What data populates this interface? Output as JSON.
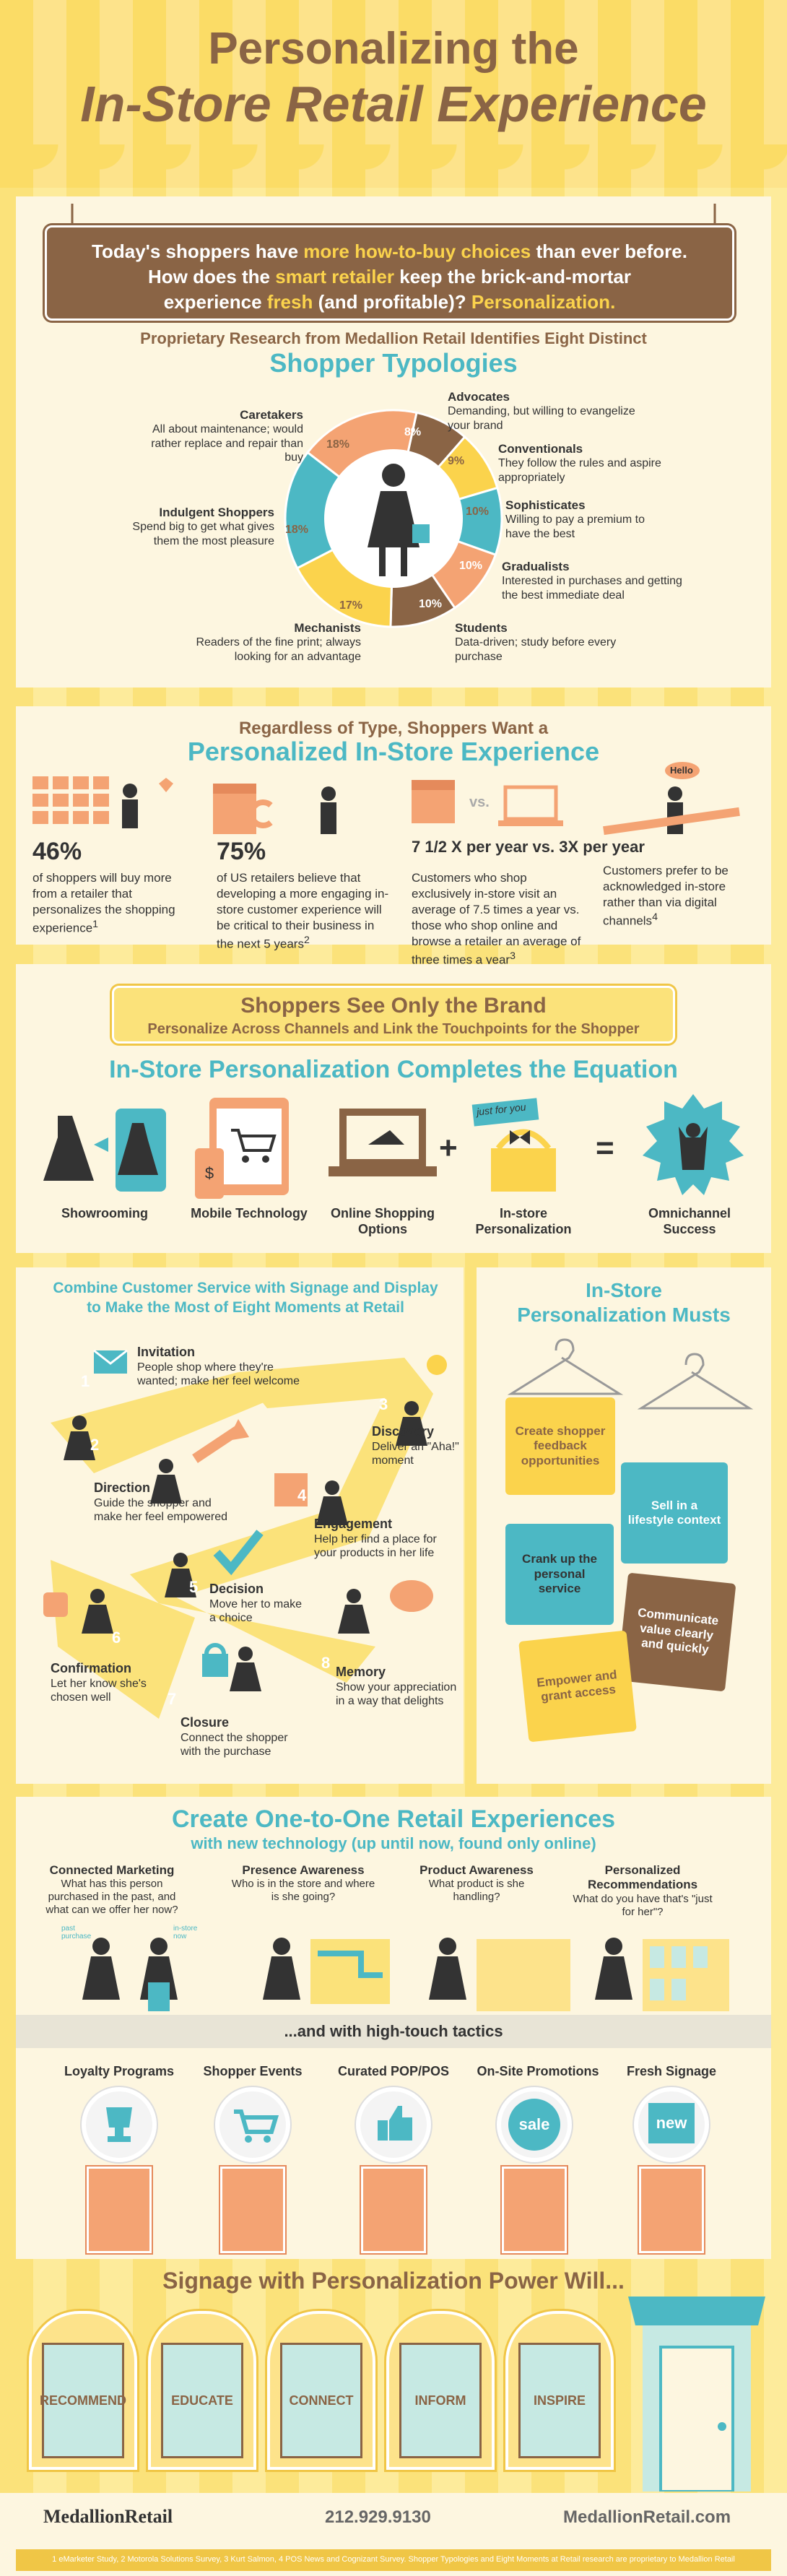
{
  "title": {
    "line1": "Personalizing the",
    "line2": "In-Store Retail Experience"
  },
  "intro": {
    "l1a": "Today's shoppers have ",
    "l1b": "more how-to-buy choices",
    "l1c": " than ever before.",
    "l2a": "How does the ",
    "l2b": "smart retailer",
    "l2c": " keep the brick-and-mortar",
    "l3a": "experience ",
    "l3b": "fresh",
    "l3c": " (and profitable)? ",
    "l3d": "Personalization."
  },
  "typologies": {
    "kicker": "Proprietary Research from Medallion Retail Identifies Eight Distinct",
    "title": "Shopper Typologies",
    "segments": [
      {
        "name": "Caretakers",
        "desc": "All about maintenance; would rather replace and repair than buy",
        "pct": "18%"
      },
      {
        "name": "Advocates",
        "desc": "Demanding, but willing to evangelize your brand",
        "pct": "8%"
      },
      {
        "name": "Conventionals",
        "desc": "They follow the rules and aspire appropriately",
        "pct": "9%"
      },
      {
        "name": "Sophisticates",
        "desc": "Willing to pay a premium to have the best",
        "pct": "10%"
      },
      {
        "name": "Gradualists",
        "desc": "Interested in purchases and getting the best immediate deal",
        "pct": "10%"
      },
      {
        "name": "Students",
        "desc": "Data-driven; study before every purchase",
        "pct": "10%"
      },
      {
        "name": "Mechanists",
        "desc": "Readers of the fine print; always looking for an advantage",
        "pct": "17%"
      },
      {
        "name": "Indulgent Shoppers",
        "desc": "Spend big to get what gives them the most pleasure",
        "pct": "18%"
      }
    ],
    "colors": [
      "#f4a373",
      "#8a6445",
      "#fbd34c",
      "#4cb8c4",
      "#f4a373",
      "#8a6445",
      "#fbd34c",
      "#4cb8c4"
    ]
  },
  "personalized": {
    "kicker": "Regardless of Type, Shoppers Want a",
    "title": "Personalized In-Store Experience",
    "stats": [
      {
        "num": "46%",
        "text": "of shoppers will buy more from a retailer that personalizes the shopping experience",
        "note": "1"
      },
      {
        "num": "75%",
        "text": "of US retailers believe that developing a more engaging in-store customer experience will be critical to their business in the next 5 years",
        "note": "2"
      },
      {
        "num": "7 1/2 X per year vs. 3X per year",
        "text": "Customers who shop exclusively in-store visit an average of 7.5 times a year vs. those who shop online and browse a retailer an average of three times a year",
        "note": "3"
      },
      {
        "num": "",
        "text": "Customers prefer to be acknowledged in-store rather than via digital channels",
        "note": "4"
      }
    ],
    "hello": "Hello",
    "vs": "vs."
  },
  "brand": {
    "title": "Shoppers See Only the Brand",
    "subtitle": "Personalize Across Channels and Link the Touchpoints for the Shopper"
  },
  "equation": {
    "title": "In-Store Personalization Completes the Equation",
    "items": [
      "Showrooming",
      "Mobile Technology",
      "Online Shopping Options",
      "In-store Personalization",
      "Omnichannel Success"
    ],
    "plus": "+",
    "equals": "=",
    "tag": "just for you"
  },
  "moments": {
    "title1": "Combine Customer Service with Signage and Display",
    "title2": "to Make the Most of Eight Moments at Retail",
    "items": [
      {
        "n": "1",
        "name": "Invitation",
        "desc": "People shop where they're wanted; make her feel welcome"
      },
      {
        "n": "2",
        "name": "Direction",
        "desc": "Guide the shopper and make her feel empowered"
      },
      {
        "n": "3",
        "name": "Discovery",
        "desc": "Deliver an \"Aha!\" moment"
      },
      {
        "n": "4",
        "name": "Engagement",
        "desc": "Help her find a place for your products in her life"
      },
      {
        "n": "5",
        "name": "Decision",
        "desc": "Move her to make a choice"
      },
      {
        "n": "6",
        "name": "Confirmation",
        "desc": "Let her know she's chosen well"
      },
      {
        "n": "7",
        "name": "Closure",
        "desc": "Connect the shopper with the purchase"
      },
      {
        "n": "8",
        "name": "Memory",
        "desc": "Show your appreciation in a way that delights"
      }
    ]
  },
  "musts": {
    "title1": "In-Store",
    "title2": "Personalization Musts",
    "tags": [
      "Create shopper feedback opportunities",
      "Sell in a lifestyle context",
      "Crank up the personal service",
      "Communicate value clearly and quickly",
      "Empower and grant access"
    ]
  },
  "oneone": {
    "title": "Create One-to-One Retail Experiences",
    "subtitle": "with new technology (up until now, found only online)",
    "items": [
      {
        "name": "Connected Marketing",
        "desc": "What has this person purchased in the past, and what can we offer her now?"
      },
      {
        "name": "Presence Awareness",
        "desc": "Who is in the store and where is she going?"
      },
      {
        "name": "Product Awareness",
        "desc": "What product is she handling?"
      },
      {
        "name": "Personalized Recommendations",
        "desc": "What do you have that's \"just for her\"?"
      }
    ],
    "past": "past purchase",
    "now": "in-store now",
    "hightouch": "...and with high-touch tactics"
  },
  "tactics": {
    "items": [
      "Loyalty Programs",
      "Shopper Events",
      "Curated POP/POS",
      "On-Site Promotions",
      "Fresh Signage"
    ],
    "sale": "sale",
    "new": "new"
  },
  "signage": {
    "title": "Signage with Personalization Power Will...",
    "words": [
      "RECOMMEND",
      "EDUCATE",
      "CONNECT",
      "INFORM",
      "INSPIRE"
    ]
  },
  "footer": {
    "logo": "MedallionRetail",
    "phone": "212.929.9130",
    "site": "MedallionRetail.com",
    "notes": "1 eMarketer Study, 2 Motorola Solutions Survey, 3 Kurt Salmon, 4 POS News and Cognizant Survey. Shopper Typologies and Eight Moments at Retail research are proprietary to Medallion Retail"
  }
}
